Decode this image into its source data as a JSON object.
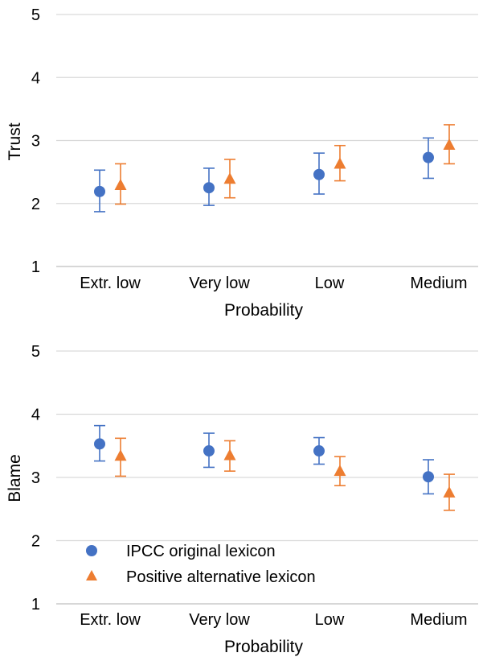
{
  "colors": {
    "series_1": "#4472C4",
    "series_2": "#ED7D31",
    "gridline": "#D9D9D9",
    "text": "#000000"
  },
  "legend": {
    "placement": "bottom-left inside lower chart",
    "entries": [
      {
        "label": "IPCC original lexicon",
        "marker": "circle"
      },
      {
        "label": "Positive alternative lexicon",
        "marker": "triangle"
      }
    ]
  },
  "chart_data": [
    {
      "type": "scatter",
      "title": "",
      "xlabel": "Probability",
      "ylabel": "Trust",
      "categories": [
        "Extr. low",
        "Very low",
        "Low",
        "Medium"
      ],
      "ylim": [
        1,
        5
      ],
      "yticks": [
        1,
        2,
        3,
        4,
        5
      ],
      "grid": true,
      "error_bars": true,
      "series": [
        {
          "name": "IPCC original lexicon",
          "marker": "circle",
          "values": [
            2.19,
            2.25,
            2.46,
            2.73
          ],
          "err_low": [
            1.87,
            1.97,
            2.15,
            2.4
          ],
          "err_high": [
            2.53,
            2.56,
            2.8,
            3.04
          ]
        },
        {
          "name": "Positive alternative lexicon",
          "marker": "triangle",
          "values": [
            2.29,
            2.39,
            2.63,
            2.93
          ],
          "err_low": [
            1.99,
            2.09,
            2.36,
            2.63
          ],
          "err_high": [
            2.63,
            2.7,
            2.92,
            3.25
          ]
        }
      ]
    },
    {
      "type": "scatter",
      "title": "",
      "xlabel": "Probability",
      "ylabel": "Blame",
      "categories": [
        "Extr. low",
        "Very low",
        "Low",
        "Medium"
      ],
      "ylim": [
        1,
        5
      ],
      "yticks": [
        1,
        2,
        3,
        4,
        5
      ],
      "grid": true,
      "error_bars": true,
      "series": [
        {
          "name": "IPCC original lexicon",
          "marker": "circle",
          "values": [
            3.53,
            3.42,
            3.42,
            3.01
          ],
          "err_low": [
            3.26,
            3.16,
            3.21,
            2.74
          ],
          "err_high": [
            3.82,
            3.7,
            3.63,
            3.28
          ]
        },
        {
          "name": "Positive alternative lexicon",
          "marker": "triangle",
          "values": [
            3.34,
            3.35,
            3.1,
            2.76
          ],
          "err_low": [
            3.02,
            3.1,
            2.87,
            2.48
          ],
          "err_high": [
            3.62,
            3.58,
            3.33,
            3.05
          ]
        }
      ]
    }
  ]
}
